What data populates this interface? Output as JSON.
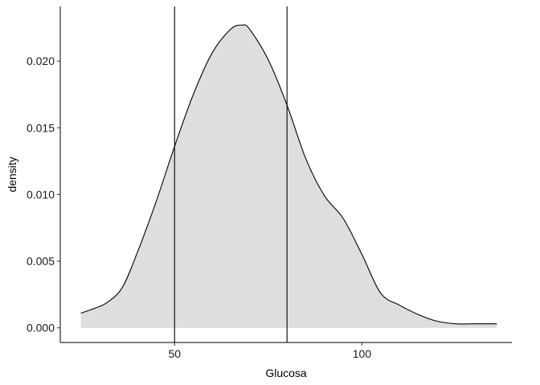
{
  "chart_data": {
    "type": "area",
    "xlabel": "Glucosa",
    "ylabel": "density",
    "xlim": [
      19.5,
      140
    ],
    "ylim": [
      -0.0011,
      0.0241
    ],
    "x_ticks": [
      50,
      100
    ],
    "x_tick_labels": [
      "50",
      "100"
    ],
    "y_ticks": [
      0.0,
      0.005,
      0.01,
      0.015,
      0.02
    ],
    "y_tick_labels": [
      "0.000",
      "0.005",
      "0.010",
      "0.015",
      "0.020"
    ],
    "grid": false,
    "vlines": [
      50,
      80
    ],
    "fill_color": "#dedede",
    "line_color": "#000000",
    "series": [
      {
        "x": [
          25,
          29,
          32,
          36,
          40,
          45,
          50,
          55,
          60,
          65,
          68,
          70,
          75,
          80,
          85,
          90,
          95,
          100,
          105,
          110,
          115,
          120,
          125,
          130,
          135,
          136
        ],
        "values": [
          0.0011,
          0.0015,
          0.0019,
          0.003,
          0.0056,
          0.0094,
          0.0136,
          0.0175,
          0.0206,
          0.0224,
          0.0227,
          0.0224,
          0.0201,
          0.0167,
          0.0127,
          0.0099,
          0.0082,
          0.0055,
          0.0026,
          0.0017,
          0.001,
          0.0005,
          0.0003,
          0.0003,
          0.0003,
          0.0003
        ]
      }
    ]
  }
}
